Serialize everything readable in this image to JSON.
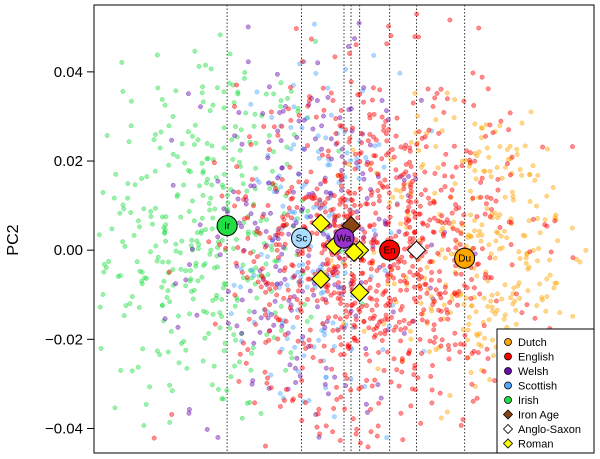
{
  "chart_data": {
    "type": "scatter",
    "title": "",
    "xlabel": "",
    "ylabel": "PC2",
    "ylim": [
      -0.0455,
      0.055
    ],
    "xlim": [
      -0.04,
      0.04
    ],
    "y_ticks": [
      {
        "value": 0.04,
        "label": "0.04"
      },
      {
        "value": 0.02,
        "label": "0.02"
      },
      {
        "value": 0.0,
        "label": "0.00"
      },
      {
        "value": -0.02,
        "label": "−0.02"
      },
      {
        "value": -0.04,
        "label": "−0.04"
      }
    ],
    "grid": false,
    "legend_position": "bottom-right",
    "vertical_reference_lines_x": [
      -0.0187,
      -0.0068,
      0,
      0.00112,
      0.0025,
      0.0073,
      0.0116,
      0.0193
    ],
    "series": [
      {
        "name": "Dutch",
        "color": "#ffa500",
        "marker": "circle",
        "cluster": {
          "cx": 0.022,
          "cy": 0.0,
          "sx": 0.009,
          "sy": 0.017
        }
      },
      {
        "name": "English",
        "color": "#ff0000",
        "marker": "circle",
        "cluster": {
          "cx": 0.005,
          "cy": 0.0,
          "sx": 0.011,
          "sy": 0.02
        }
      },
      {
        "name": "Welsh",
        "color": "#6a0dad",
        "marker": "circle",
        "cluster": {
          "cx": -0.006,
          "cy": 0.002,
          "sx": 0.009,
          "sy": 0.02
        }
      },
      {
        "name": "Scottish",
        "color": "#4da6ff",
        "marker": "circle",
        "cluster": {
          "cx": -0.004,
          "cy": 0.0,
          "sx": 0.006,
          "sy": 0.02
        }
      },
      {
        "name": "Irish",
        "color": "#22dd44",
        "marker": "circle",
        "cluster": {
          "cx": -0.022,
          "cy": 0.004,
          "sx": 0.009,
          "sy": 0.022
        }
      },
      {
        "name": "Iron Age",
        "color": "#8b4513",
        "marker": "diamond"
      },
      {
        "name": "Anglo-Saxon",
        "color": "#ffffff",
        "marker": "diamond"
      },
      {
        "name": "Roman",
        "color": "#ffff00",
        "marker": "diamond"
      }
    ],
    "centroids": [
      {
        "label": "Ir",
        "x": -0.0187,
        "y": 0.0055,
        "color": "#22dd44"
      },
      {
        "label": "Sc",
        "x": -0.0068,
        "y": 0.0027,
        "color": "#aaddff"
      },
      {
        "label": "Wa",
        "x": 0.0,
        "y": 0.0027,
        "color": "#9932cc"
      },
      {
        "label": "En",
        "x": 0.0073,
        "y": 0.0,
        "color": "#ff0000"
      },
      {
        "label": "Du",
        "x": 0.0193,
        "y": -0.0018,
        "color": "#ffa500"
      }
    ],
    "ancient_samples": [
      {
        "group": "Iron Age",
        "x": 0.00112,
        "y": 0.0055
      },
      {
        "group": "Iron Age",
        "x": 0.0016,
        "y": -0.0005
      },
      {
        "group": "Anglo-Saxon",
        "x": 0.0116,
        "y": 0.0
      },
      {
        "group": "Roman",
        "x": -0.0037,
        "y": 0.006
      },
      {
        "group": "Roman",
        "x": -0.0015,
        "y": 0.001
      },
      {
        "group": "Roman",
        "x": 0.0025,
        "y": 0.0
      },
      {
        "group": "Roman",
        "x": -0.0037,
        "y": -0.0065
      },
      {
        "group": "Roman",
        "x": 0.0025,
        "y": -0.0095
      },
      {
        "group": "Roman",
        "x": 0.0016,
        "y": -0.0005
      }
    ]
  }
}
